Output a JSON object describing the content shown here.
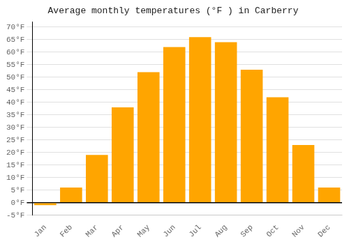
{
  "chart_data": {
    "type": "bar",
    "title": "Average monthly temperatures (°F ) in Carberry",
    "categories": [
      "Jan",
      "Feb",
      "Mar",
      "Apr",
      "May",
      "Jun",
      "Jul",
      "Aug",
      "Sep",
      "Oct",
      "Nov",
      "Dec"
    ],
    "values": [
      -1,
      6,
      19,
      38,
      52,
      62,
      66,
      64,
      53,
      42,
      23,
      6
    ],
    "color": "#FFA500",
    "ylim": [
      -5,
      72
    ],
    "yticks": [
      {
        "value": -5,
        "label": "-5°F"
      },
      {
        "value": 0,
        "label": "0°F"
      },
      {
        "value": 5,
        "label": "5°F"
      },
      {
        "value": 10,
        "label": "10°F"
      },
      {
        "value": 15,
        "label": "15°F"
      },
      {
        "value": 20,
        "label": "20°F"
      },
      {
        "value": 25,
        "label": "25°F"
      },
      {
        "value": 30,
        "label": "30°F"
      },
      {
        "value": 35,
        "label": "35°F"
      },
      {
        "value": 40,
        "label": "40°F"
      },
      {
        "value": 45,
        "label": "45°F"
      },
      {
        "value": 50,
        "label": "50°F"
      },
      {
        "value": 55,
        "label": "55°F"
      },
      {
        "value": 60,
        "label": "60°F"
      },
      {
        "value": 65,
        "label": "65°F"
      },
      {
        "value": 70,
        "label": "70°F"
      }
    ],
    "grid": true
  }
}
